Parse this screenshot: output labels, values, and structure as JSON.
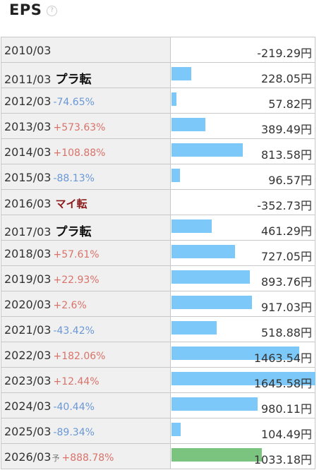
{
  "header": {
    "title": "EPS",
    "help_icon": "?"
  },
  "scale_max": 1645.58,
  "rows": [
    {
      "year": "2010/03",
      "change": "",
      "dir": "",
      "flag": "",
      "yo": "",
      "value": "-219.29円",
      "num": -219.29,
      "forecast": false
    },
    {
      "year": "2011/03",
      "change": "",
      "dir": "",
      "flag": "プラ転",
      "yo": "",
      "value": "228.05円",
      "num": 228.05,
      "forecast": false
    },
    {
      "year": "2012/03",
      "change": "-74.65%",
      "dir": "down",
      "flag": "",
      "yo": "",
      "value": "57.82円",
      "num": 57.82,
      "forecast": false
    },
    {
      "year": "2013/03",
      "change": "+573.63%",
      "dir": "up",
      "flag": "",
      "yo": "",
      "value": "389.49円",
      "num": 389.49,
      "forecast": false
    },
    {
      "year": "2014/03",
      "change": "+108.88%",
      "dir": "up",
      "flag": "",
      "yo": "",
      "value": "813.58円",
      "num": 813.58,
      "forecast": false
    },
    {
      "year": "2015/03",
      "change": "-88.13%",
      "dir": "down",
      "flag": "",
      "yo": "",
      "value": "96.57円",
      "num": 96.57,
      "forecast": false
    },
    {
      "year": "2016/03",
      "change": "",
      "dir": "",
      "flag": "マイ転",
      "yo": "",
      "value": "-352.73円",
      "num": -352.73,
      "forecast": false
    },
    {
      "year": "2017/03",
      "change": "",
      "dir": "",
      "flag": "プラ転",
      "yo": "",
      "value": "461.29円",
      "num": 461.29,
      "forecast": false
    },
    {
      "year": "2018/03",
      "change": "+57.61%",
      "dir": "up",
      "flag": "",
      "yo": "",
      "value": "727.05円",
      "num": 727.05,
      "forecast": false
    },
    {
      "year": "2019/03",
      "change": "+22.93%",
      "dir": "up",
      "flag": "",
      "yo": "",
      "value": "893.76円",
      "num": 893.76,
      "forecast": false
    },
    {
      "year": "2020/03",
      "change": "+2.6%",
      "dir": "up",
      "flag": "",
      "yo": "",
      "value": "917.03円",
      "num": 917.03,
      "forecast": false
    },
    {
      "year": "2021/03",
      "change": "-43.42%",
      "dir": "down",
      "flag": "",
      "yo": "",
      "value": "518.88円",
      "num": 518.88,
      "forecast": false
    },
    {
      "year": "2022/03",
      "change": "+182.06%",
      "dir": "up",
      "flag": "",
      "yo": "",
      "value": "1463.54円",
      "num": 1463.54,
      "forecast": false
    },
    {
      "year": "2023/03",
      "change": "+12.44%",
      "dir": "up",
      "flag": "",
      "yo": "",
      "value": "1645.58円",
      "num": 1645.58,
      "forecast": false
    },
    {
      "year": "2024/03",
      "change": "-40.44%",
      "dir": "down",
      "flag": "",
      "yo": "",
      "value": "980.11円",
      "num": 980.11,
      "forecast": false
    },
    {
      "year": "2025/03",
      "change": "-89.34%",
      "dir": "down",
      "flag": "",
      "yo": "",
      "value": "104.49円",
      "num": 104.49,
      "forecast": false
    },
    {
      "year": "2026/03",
      "change": "+888.78%",
      "dir": "up",
      "flag": "",
      "yo": "予",
      "value": "1033.18円",
      "num": 1033.18,
      "forecast": true
    }
  ],
  "colors": {
    "bar": "#7cc8f8",
    "forecast_bar": "#7bc47f",
    "up": "#d9736a",
    "down": "#6a98d6",
    "minus_flag": "#8b1a1a"
  }
}
